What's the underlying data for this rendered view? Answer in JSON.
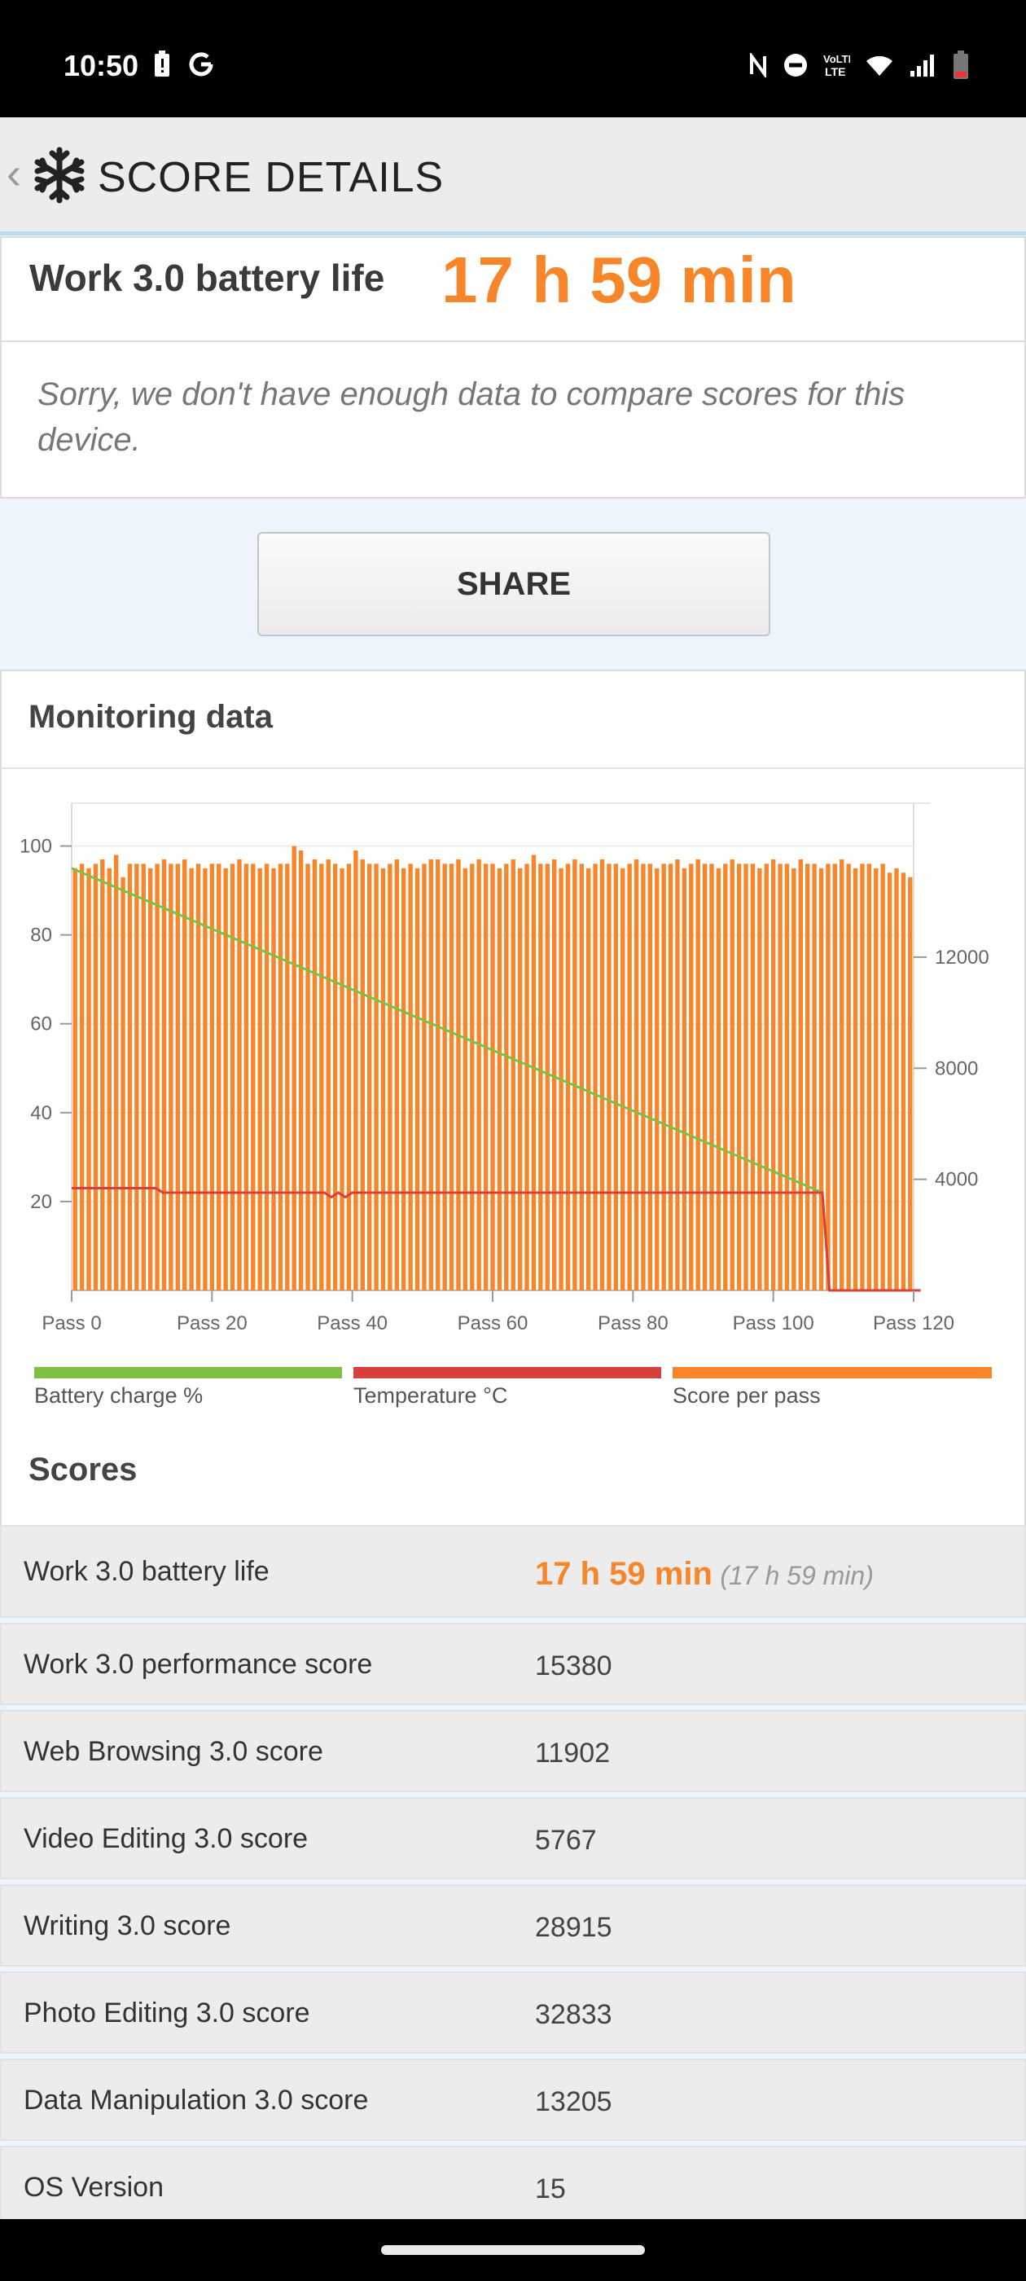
{
  "status_bar": {
    "time": "10:50",
    "left_icons": [
      "battery-alert-icon",
      "google-icon"
    ],
    "right_icons": [
      "nfc-icon",
      "do-not-disturb-icon",
      "volte-icon",
      "wifi-icon",
      "cellular-signal-icon",
      "battery-low-icon"
    ]
  },
  "app_bar": {
    "back_icon": "back-chevron-icon",
    "logo_icon": "snowflake-icon",
    "title": "SCORE DETAILS"
  },
  "summary": {
    "label": "Work 3.0 battery life",
    "value": "17 h 59 min",
    "note": "Sorry, we don't have enough data to compare scores for this device."
  },
  "share_label": "SHARE",
  "monitoring": {
    "title": "Monitoring data",
    "legend": [
      {
        "label": "Battery charge %",
        "color": "#7dc142"
      },
      {
        "label": "Temperature °C",
        "color": "#d6403d"
      },
      {
        "label": "Score per pass",
        "color": "#f7852a"
      }
    ]
  },
  "chart_data": {
    "type": "bar",
    "x_tick_labels": [
      "Pass 0",
      "Pass 20",
      "Pass 40",
      "Pass 60",
      "Pass 80",
      "Pass 100",
      "Pass 120"
    ],
    "left_axis": {
      "ticks": [
        "20",
        "40",
        "60",
        "80",
        "100"
      ],
      "range": [
        0,
        110
      ]
    },
    "right_axis": {
      "ticks": [
        "4000",
        "8000",
        "12000"
      ],
      "range": [
        0,
        17600
      ]
    },
    "series": [
      {
        "name": "Score per pass",
        "axis": "left",
        "values": [
          95,
          96,
          95,
          96,
          97,
          95,
          98,
          93,
          96,
          96,
          96,
          95,
          96,
          97,
          96,
          96,
          97,
          95,
          96,
          95,
          96,
          96,
          95,
          96,
          97,
          96,
          96,
          95,
          96,
          95,
          96,
          96,
          100,
          99,
          96,
          97,
          96,
          97,
          96,
          95,
          96,
          99,
          97,
          96,
          96,
          95,
          96,
          97,
          95,
          96,
          95,
          96,
          97,
          97,
          96,
          96,
          97,
          95,
          96,
          97,
          96,
          96,
          95,
          96,
          97,
          95,
          96,
          98,
          96,
          96,
          97,
          95,
          96,
          97,
          96,
          95,
          96,
          97,
          96,
          96,
          95,
          96,
          97,
          96,
          96,
          95,
          96,
          96,
          97,
          95,
          96,
          97,
          96,
          96,
          95,
          96,
          97,
          96,
          96,
          96,
          95,
          96,
          97,
          96,
          96,
          95,
          97,
          96,
          96,
          95,
          96,
          96,
          97,
          96,
          95,
          96,
          96,
          95,
          96,
          94,
          95,
          94,
          93
        ]
      },
      {
        "name": "Battery charge %",
        "axis": "left",
        "points": [
          [
            0,
            95
          ],
          [
            107,
            22
          ]
        ]
      },
      {
        "name": "Temperature °C",
        "axis": "left",
        "points": [
          [
            0,
            23
          ],
          [
            12,
            23
          ],
          [
            13,
            22
          ],
          [
            36,
            22
          ],
          [
            37,
            21
          ],
          [
            38,
            22
          ],
          [
            39,
            21
          ],
          [
            40,
            22
          ],
          [
            107,
            22
          ],
          [
            108,
            0
          ],
          [
            121,
            0
          ]
        ]
      }
    ]
  },
  "scores": {
    "title": "Scores",
    "rows": [
      {
        "label": "Work 3.0 battery life",
        "value": "17 h 59 min",
        "sub": "(17 h 59 min)"
      },
      {
        "label": "Work 3.0 performance score",
        "value": "15380"
      },
      {
        "label": "Web Browsing 3.0 score",
        "value": "11902"
      },
      {
        "label": "Video Editing 3.0 score",
        "value": "5767"
      },
      {
        "label": "Writing 3.0 score",
        "value": "28915"
      },
      {
        "label": "Photo Editing 3.0 score",
        "value": "32833"
      },
      {
        "label": "Data Manipulation 3.0 score",
        "value": "13205"
      },
      {
        "label": "OS Version",
        "value": "15"
      }
    ]
  }
}
